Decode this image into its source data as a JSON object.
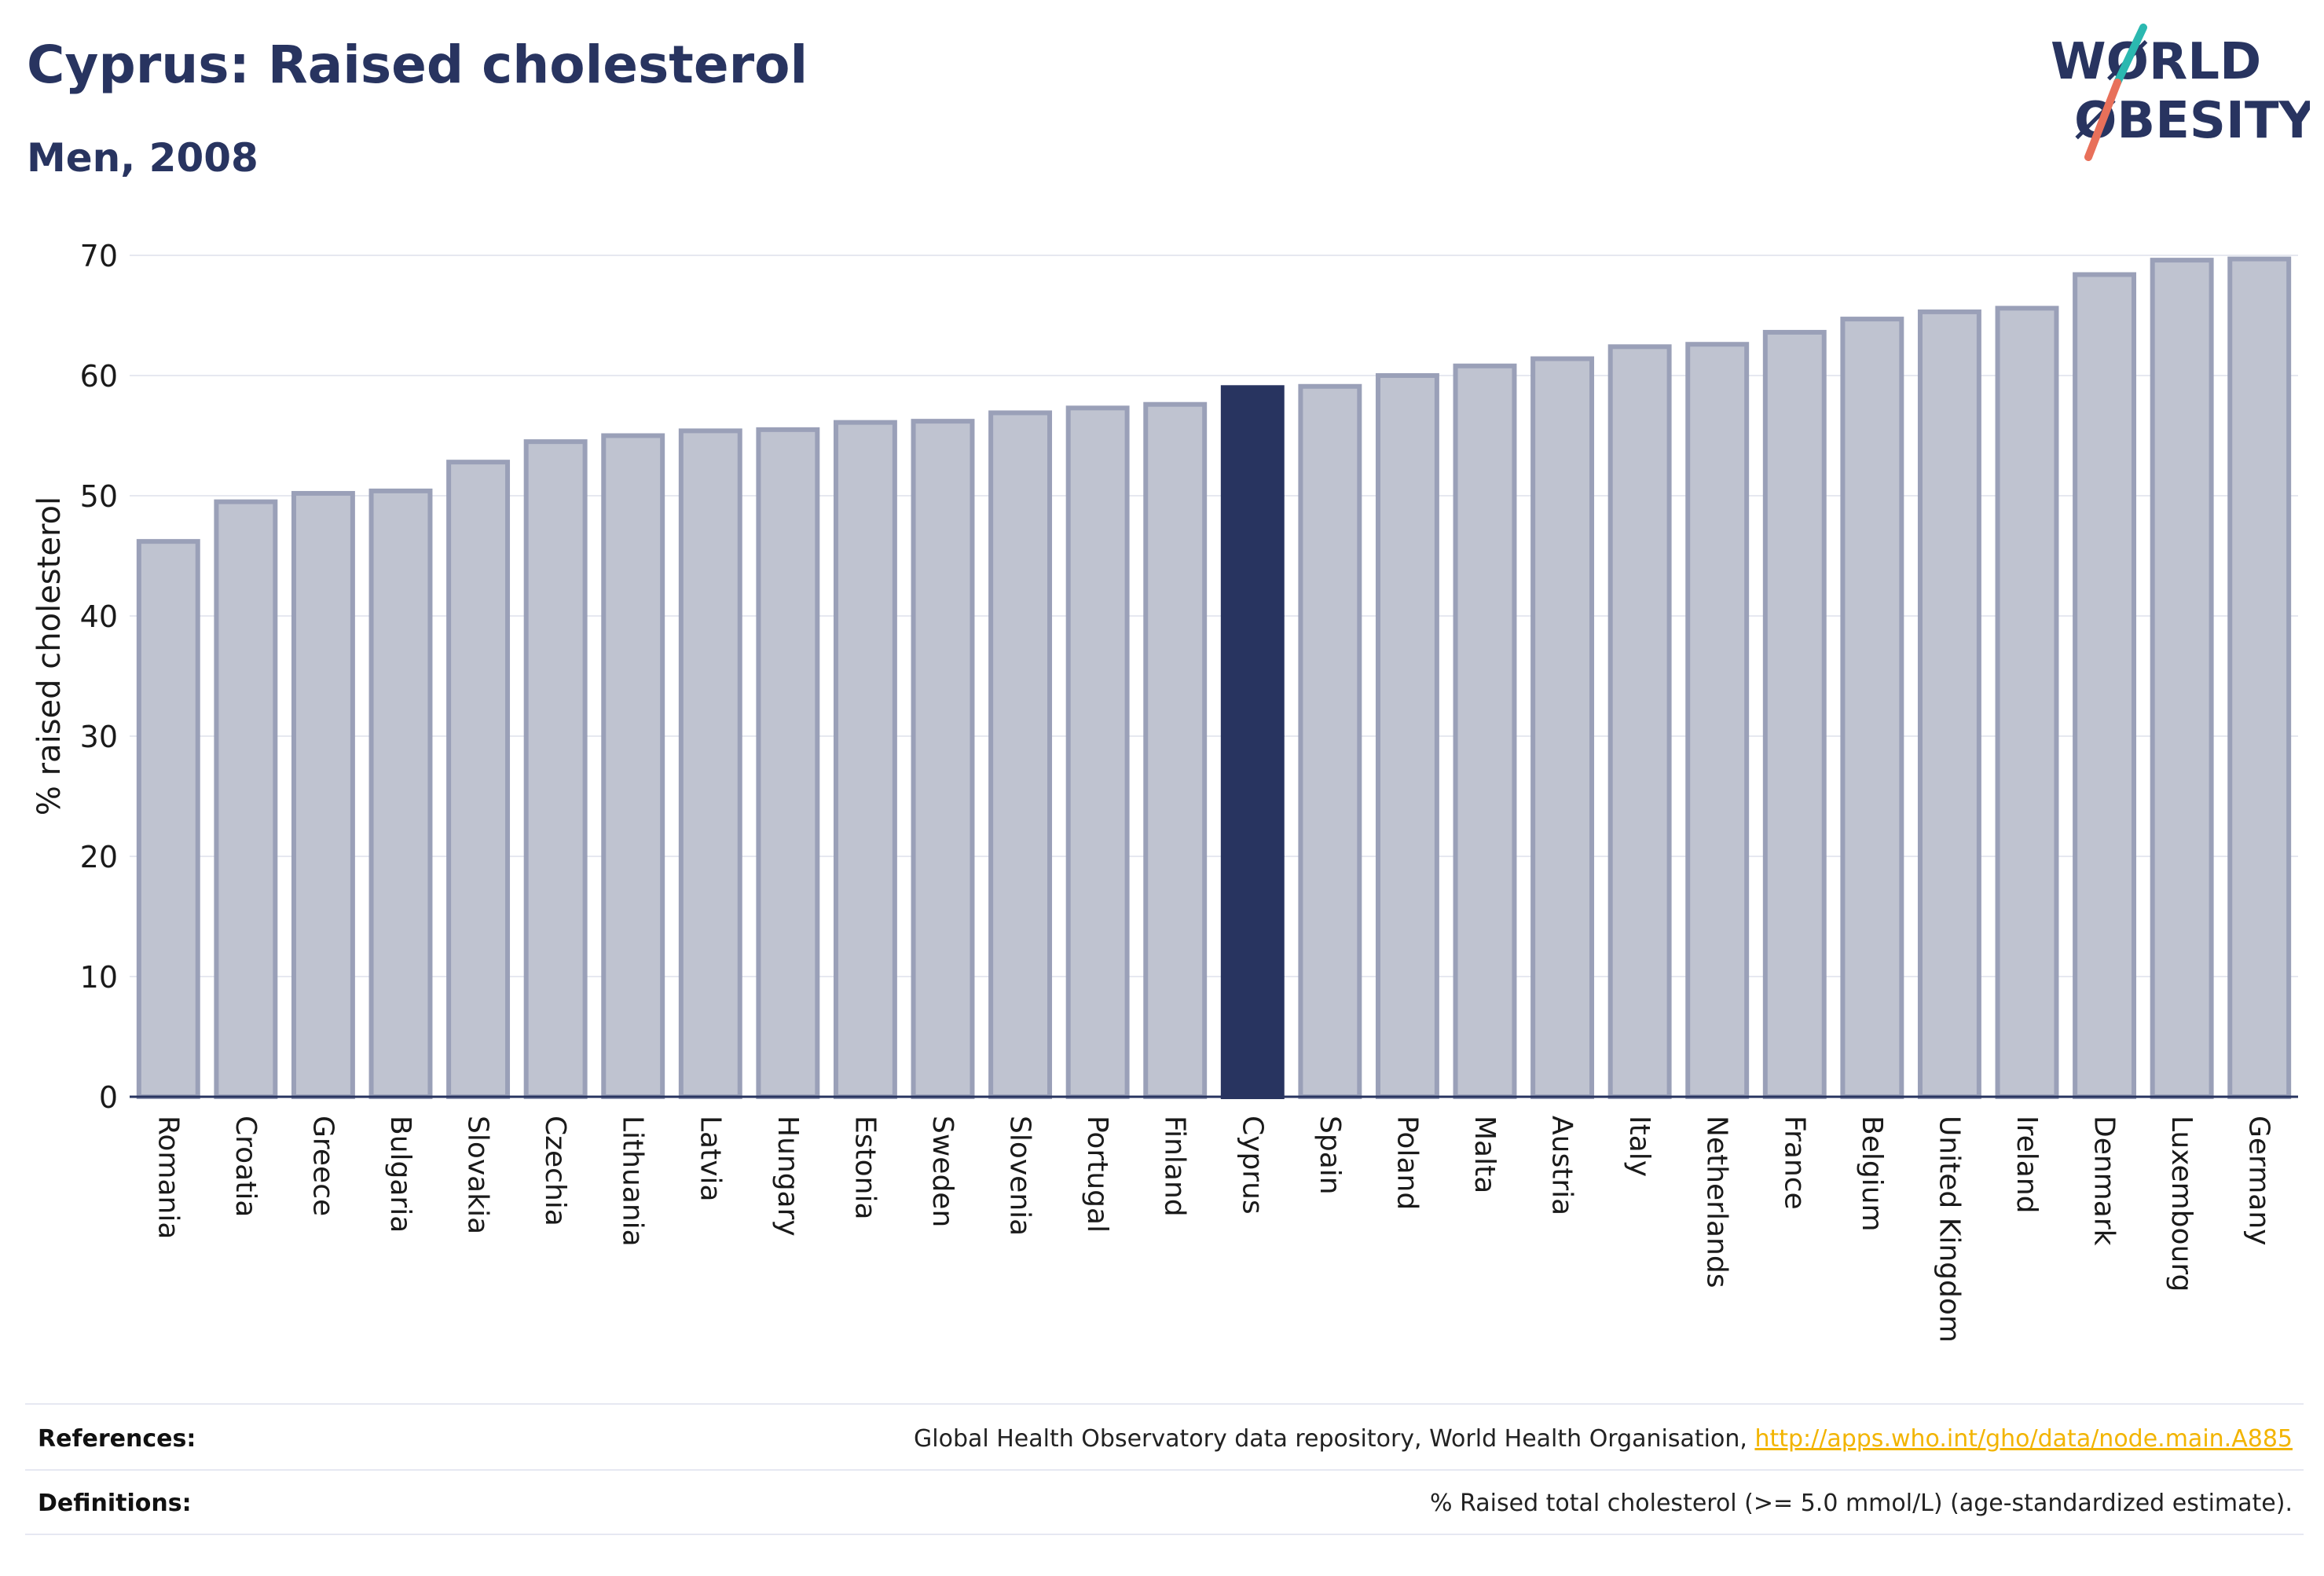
{
  "header": {
    "title": "Cyprus: Raised cholesterol",
    "subtitle": "Men, 2008"
  },
  "logo": {
    "line1": "WØRLD",
    "line2": "ØBESITY",
    "text_color": "#283460",
    "slash_color_top": "#2bb8b0",
    "slash_color_bottom": "#e8705a"
  },
  "colors": {
    "bar_fill": "#bfc3d0",
    "bar_stroke": "#9aa0b8",
    "highlight_fill": "#283460",
    "axis_text": "#1a1a1a",
    "grid": "#e6e8f0"
  },
  "chart_data": {
    "type": "bar",
    "ylabel": "% raised cholesterol",
    "xlabel": "",
    "ylim": [
      0,
      70
    ],
    "yticks": [
      0,
      10,
      20,
      30,
      40,
      50,
      60,
      70
    ],
    "grid": true,
    "highlight": "Cyprus",
    "categories": [
      "Romania",
      "Croatia",
      "Greece",
      "Bulgaria",
      "Slovakia",
      "Czechia",
      "Lithuania",
      "Latvia",
      "Hungary",
      "Estonia",
      "Sweden",
      "Slovenia",
      "Portugal",
      "Finland",
      "Cyprus",
      "Spain",
      "Poland",
      "Malta",
      "Austria",
      "Italy",
      "Netherlands",
      "France",
      "Belgium",
      "United Kingdom",
      "Ireland",
      "Denmark",
      "Luxembourg",
      "Germany"
    ],
    "values": [
      46.2,
      49.5,
      50.2,
      50.4,
      52.8,
      54.5,
      55.0,
      55.4,
      55.5,
      56.1,
      56.2,
      56.9,
      57.3,
      57.6,
      59.0,
      59.1,
      60.0,
      60.8,
      61.4,
      62.4,
      62.6,
      63.6,
      64.7,
      65.3,
      65.6,
      68.4,
      69.6,
      69.7
    ]
  },
  "footer": {
    "references_label": "References:",
    "references_text": "Global Health Observatory data repository, World Health Organisation, ",
    "references_link": "http://apps.who.int/gho/data/node.main.A885",
    "definitions_label": "Definitions:",
    "definitions_text": "% Raised total cholesterol (>= 5.0 mmol/L) (age-standardized estimate)."
  }
}
